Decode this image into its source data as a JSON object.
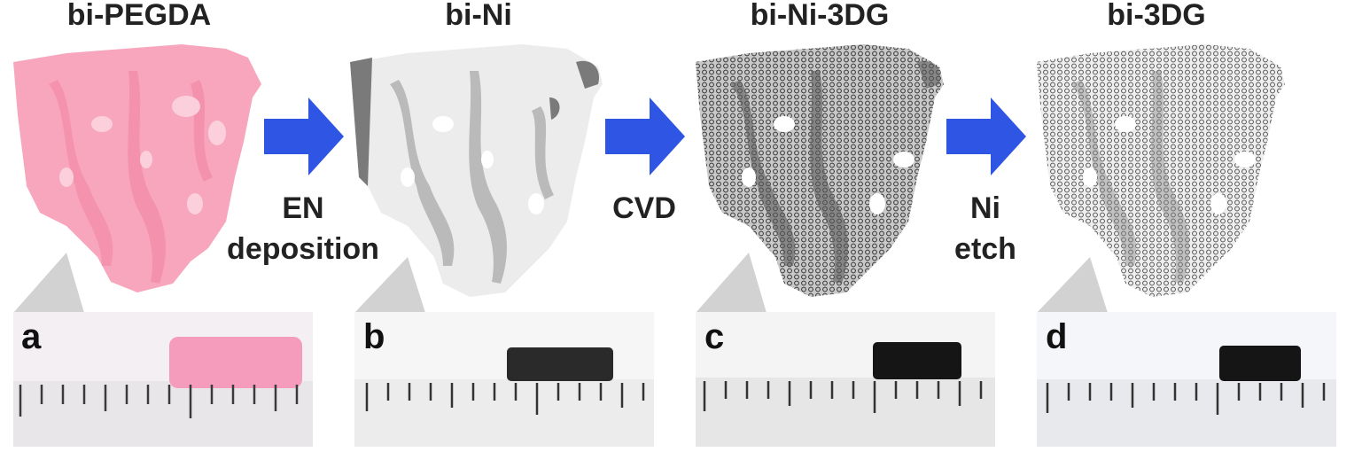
{
  "panels": [
    {
      "title": "bi-PEGDA",
      "letter": "a",
      "cube_color": "#f7a6bd",
      "sample_color": "#f59bbb",
      "photo_bg": "#f3eff3"
    },
    {
      "title": "bi-Ni",
      "letter": "b",
      "cube_color": "#e8e8e8",
      "sample_color": "#2a2a2a",
      "photo_bg": "#f6f6f6"
    },
    {
      "title": "bi-Ni-3DG",
      "letter": "c",
      "cube_color": "#bdbdbd",
      "sample_color": "#151515",
      "photo_bg": "#f4f4f4"
    },
    {
      "title": "bi-3DG",
      "letter": "d",
      "cube_color": "#dcdcdc",
      "sample_color": "#151515",
      "photo_bg": "#f4f6fa"
    }
  ],
  "steps": [
    {
      "line1": "EN",
      "line2": "deposition"
    },
    {
      "line1": "CVD",
      "line2": ""
    },
    {
      "line1": "Ni",
      "line2": "etch"
    }
  ],
  "colors": {
    "arrow": "#2f55e4",
    "callout": "#d2d2d2"
  }
}
